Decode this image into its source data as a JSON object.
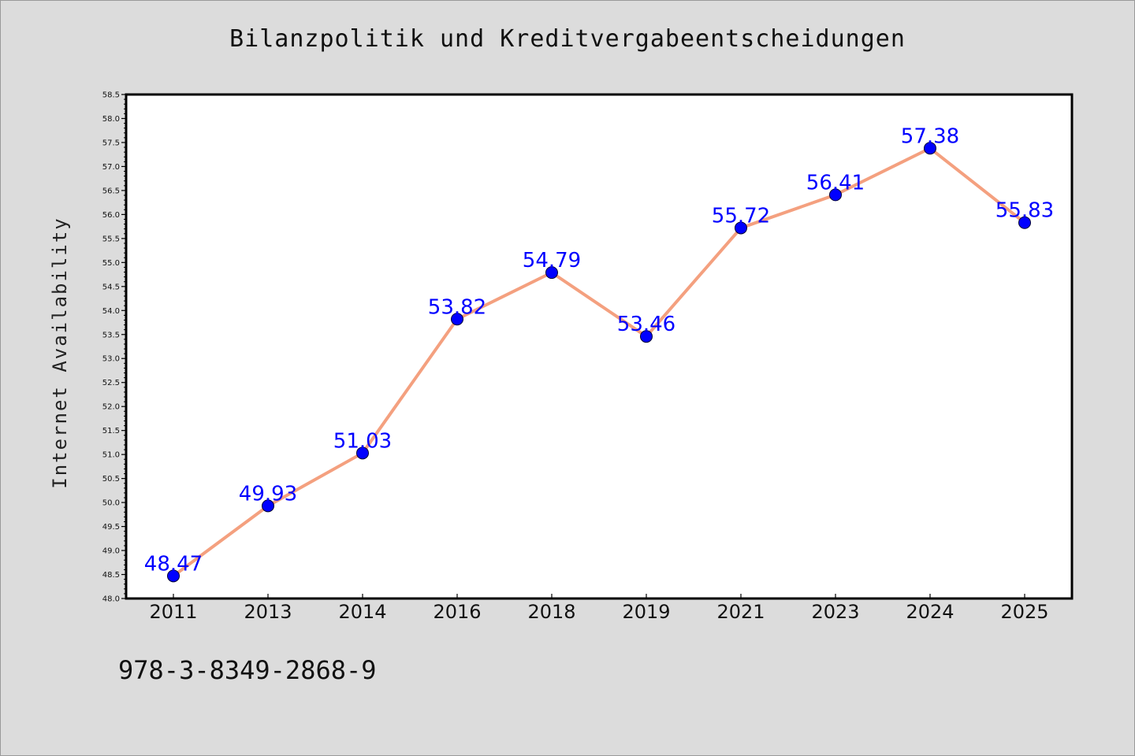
{
  "chart_data": {
    "type": "line",
    "title": "Bilanzpolitik und Kreditvergabeentscheidungen",
    "ylabel": "Internet Availability",
    "xlabel": "",
    "categories": [
      "2011",
      "2013",
      "2014",
      "2016",
      "2018",
      "2019",
      "2021",
      "2023",
      "2024",
      "2025"
    ],
    "series": [
      {
        "values": [
          48.47,
          49.93,
          51.03,
          53.82,
          54.79,
          53.46,
          55.72,
          56.41,
          57.38,
          55.83
        ],
        "data_labels": [
          "48.47",
          "49.93",
          "51.03",
          "53.82",
          "54.79",
          "53.46",
          "55.72",
          "56.41",
          "57.38",
          "55.83"
        ],
        "line_color": "#f4a07f",
        "marker_color": "#0000ff"
      }
    ],
    "ylim": [
      48.0,
      58.5
    ],
    "y_ticks": [
      "48.0",
      "48.5",
      "49.0",
      "49.5",
      "50.0",
      "50.5",
      "51.0",
      "51.5",
      "52.0",
      "52.5",
      "53.0",
      "53.5",
      "54.0",
      "54.5",
      "55.0",
      "55.5",
      "56.0",
      "56.5",
      "57.0",
      "57.5",
      "58.0",
      "58.5"
    ],
    "grid": false,
    "label_color": "#0000ff"
  },
  "footnote": "978-3-8349-2868-9",
  "colors": {
    "background": "#dcdcdc",
    "plot_background": "#ffffff"
  }
}
